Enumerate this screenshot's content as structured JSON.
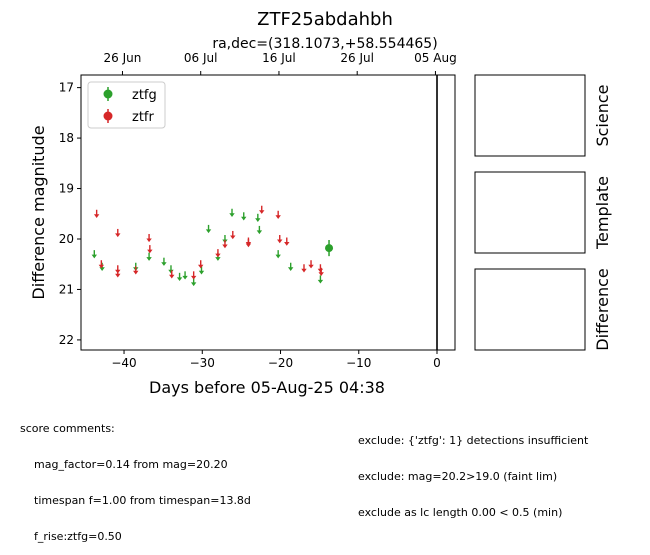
{
  "chart_data": {
    "type": "scatter",
    "title": "ZTF25abdahbh",
    "subtitle": "ra,dec=(318.1073,+58.554465)",
    "xlabel": "Days before 05-Aug-25 04:38",
    "ylabel": "Difference magnitude",
    "xlim": [
      -45.5,
      2.3
    ],
    "ylim": [
      22.2,
      16.75
    ],
    "y_inverted": true,
    "xticks": [
      -40,
      -30,
      -20,
      -10,
      0
    ],
    "xtick_labels": [
      "−40",
      "−30",
      "−20",
      "−10",
      "0"
    ],
    "yticks": [
      17,
      18,
      19,
      20,
      21,
      22
    ],
    "top_ticks": [
      -40.2,
      -30.2,
      -20.2,
      -10.2,
      -0.2
    ],
    "top_tick_labels": [
      "26 Jun",
      "06 Jul",
      "16 Jul",
      "26 Jul",
      "05 Aug"
    ],
    "now_line_x": 0,
    "legend_position": "top-left",
    "grid": false,
    "series": [
      {
        "name": "ztfg",
        "color": "#2ca02c",
        "detections": [
          {
            "x": -13.8,
            "y": 20.18,
            "err": 0.16
          }
        ],
        "upper_limits": [
          {
            "x": -43.8,
            "y": 20.3
          },
          {
            "x": -42.8,
            "y": 20.55
          },
          {
            "x": -38.5,
            "y": 20.55
          },
          {
            "x": -36.8,
            "y": 20.35
          },
          {
            "x": -34.9,
            "y": 20.45
          },
          {
            "x": -34.0,
            "y": 20.6
          },
          {
            "x": -32.9,
            "y": 20.75
          },
          {
            "x": -32.2,
            "y": 20.72
          },
          {
            "x": -31.1,
            "y": 20.85
          },
          {
            "x": -30.1,
            "y": 20.62
          },
          {
            "x": -29.2,
            "y": 19.8
          },
          {
            "x": -28.0,
            "y": 20.35
          },
          {
            "x": -27.1,
            "y": 20.0
          },
          {
            "x": -26.2,
            "y": 19.48
          },
          {
            "x": -24.7,
            "y": 19.55
          },
          {
            "x": -22.9,
            "y": 19.58
          },
          {
            "x": -22.7,
            "y": 19.82
          },
          {
            "x": -20.3,
            "y": 20.3
          },
          {
            "x": -18.7,
            "y": 20.55
          },
          {
            "x": -14.9,
            "y": 20.8
          }
        ]
      },
      {
        "name": "ztfr",
        "color": "#d62728",
        "detections": [],
        "upper_limits": [
          {
            "x": -43.5,
            "y": 19.5
          },
          {
            "x": -42.9,
            "y": 20.5
          },
          {
            "x": -40.8,
            "y": 19.88
          },
          {
            "x": -40.8,
            "y": 20.6
          },
          {
            "x": -40.8,
            "y": 20.68
          },
          {
            "x": -38.5,
            "y": 20.62
          },
          {
            "x": -36.8,
            "y": 19.98
          },
          {
            "x": -36.7,
            "y": 20.2
          },
          {
            "x": -33.9,
            "y": 20.7
          },
          {
            "x": -31.1,
            "y": 20.72
          },
          {
            "x": -30.2,
            "y": 20.5
          },
          {
            "x": -28.0,
            "y": 20.28
          },
          {
            "x": -27.1,
            "y": 20.1
          },
          {
            "x": -26.1,
            "y": 19.92
          },
          {
            "x": -24.1,
            "y": 20.05
          },
          {
            "x": -24.1,
            "y": 20.08
          },
          {
            "x": -22.4,
            "y": 19.42
          },
          {
            "x": -20.3,
            "y": 19.52
          },
          {
            "x": -20.1,
            "y": 20.0
          },
          {
            "x": -19.2,
            "y": 20.05
          },
          {
            "x": -17.0,
            "y": 20.58
          },
          {
            "x": -16.1,
            "y": 20.5
          },
          {
            "x": -14.9,
            "y": 20.58
          },
          {
            "x": -14.8,
            "y": 20.65
          }
        ]
      }
    ]
  },
  "cutouts": {
    "science_label": "Science",
    "template_label": "Template",
    "difference_label": "Difference"
  },
  "comments": {
    "score_header": "score comments:",
    "score_lines": [
      "mag_factor=0.14 from mag=20.20",
      "timespan f=1.00 from timespan=13.8d",
      "f_rise:ztfg=0.50"
    ],
    "exclude_lines": [
      "exclude: {'ztfg': 1} detections insufficient",
      "exclude: mag=20.2>19.0 (faint lim)",
      "exclude as lc length 0.00 < 0.5 (min)"
    ]
  }
}
